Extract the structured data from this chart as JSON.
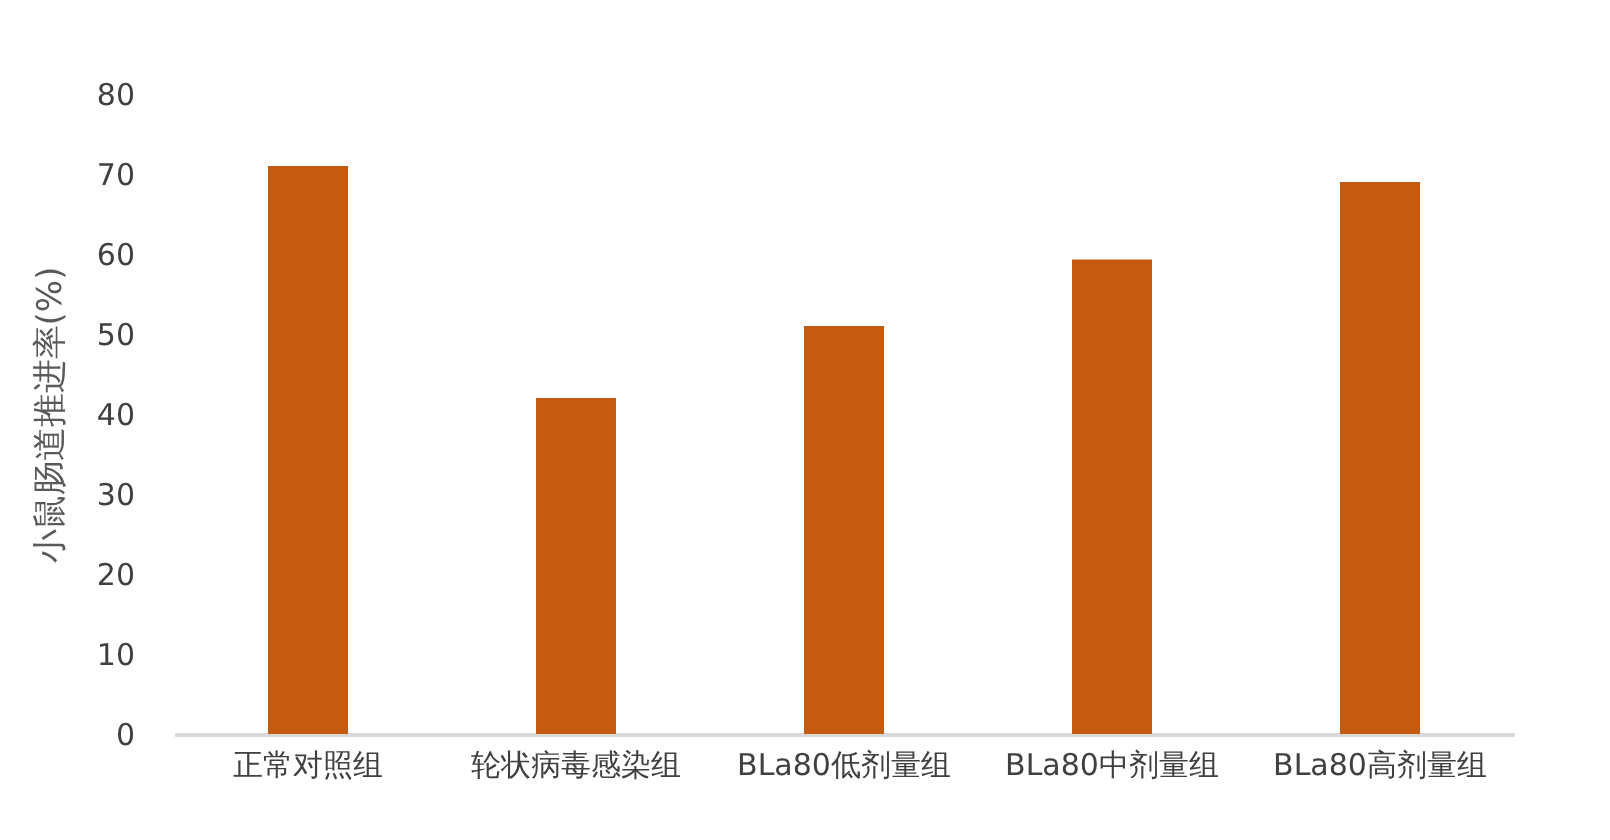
{
  "chart_data": {
    "type": "bar",
    "ylabel": "小鼠肠道推进率(%)",
    "categories": [
      "正常对照组",
      "轮状病毒感染组",
      "BLa80低剂量组",
      "BLa80中剂量组",
      "BLa80高剂量组"
    ],
    "values": [
      71,
      42,
      51,
      59.3,
      69
    ],
    "color": "#c55a11",
    "ylim": [
      0,
      80
    ],
    "yticks": [
      0,
      10,
      20,
      30,
      40,
      50,
      60,
      70,
      80
    ],
    "grid": false
  }
}
